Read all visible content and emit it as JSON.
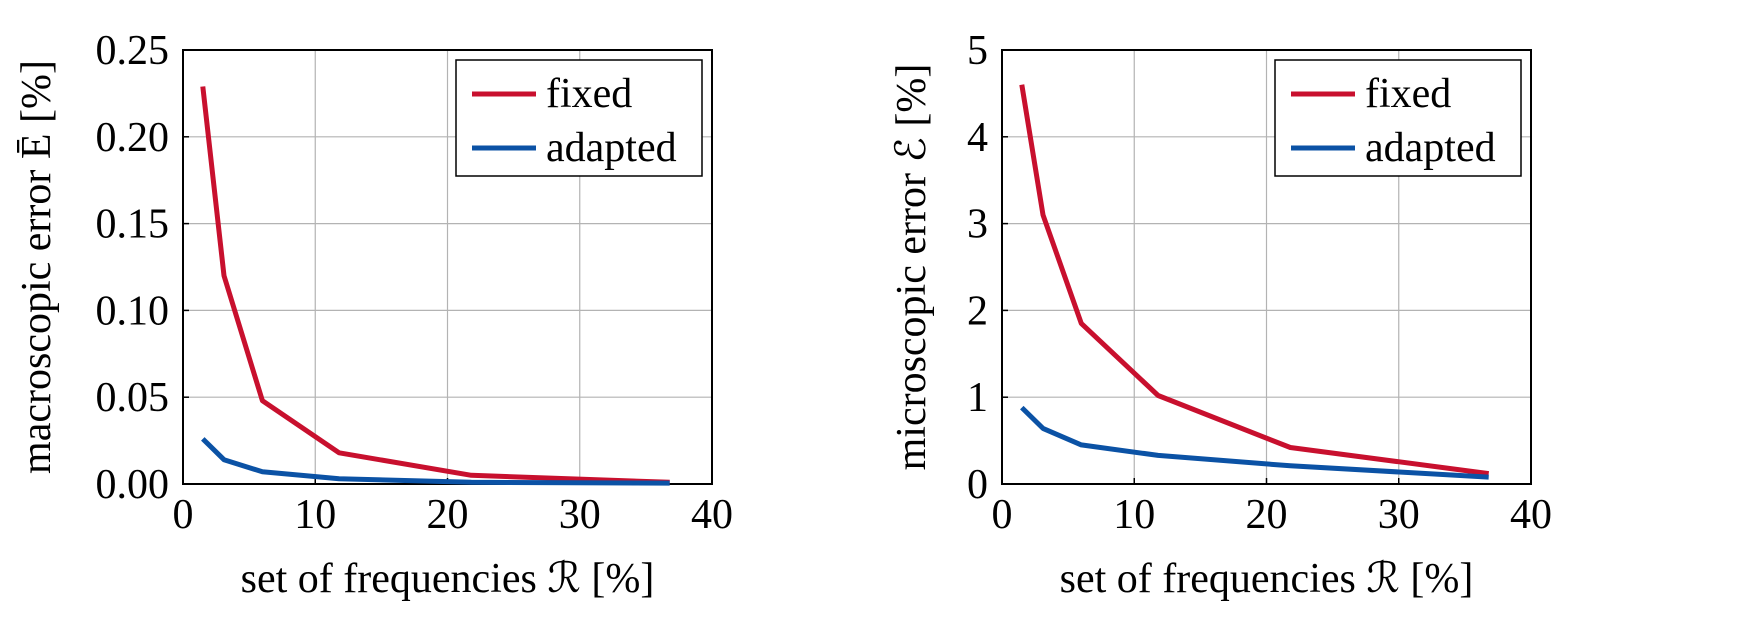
{
  "chart_data": [
    {
      "type": "line",
      "xlabel": "set of frequencies ℛ [%]",
      "ylabel": "macroscopic error Ē [%]",
      "xlim": [
        0,
        40
      ],
      "ylim": [
        0,
        0.25
      ],
      "xticks": [
        "0",
        "10",
        "20",
        "30",
        "40"
      ],
      "yticks": [
        "0.00",
        "0.05",
        "0.10",
        "0.15",
        "0.20",
        "0.25"
      ],
      "grid": true,
      "legend_position": "top-right",
      "series": [
        {
          "name": "fixed",
          "color": "#c8102e",
          "x": [
            1.5,
            3.1,
            6.0,
            11.8,
            21.8,
            36.8
          ],
          "y": [
            0.229,
            0.12,
            0.048,
            0.018,
            0.005,
            0.001
          ]
        },
        {
          "name": "adapted",
          "color": "#0b52a5",
          "x": [
            1.5,
            3.1,
            6.0,
            11.8,
            21.8,
            36.8
          ],
          "y": [
            0.026,
            0.014,
            0.007,
            0.003,
            0.001,
            0.0005
          ]
        }
      ]
    },
    {
      "type": "line",
      "xlabel": "set of frequencies ℛ [%]",
      "ylabel": "microscopic error ℰ [%]",
      "xlim": [
        0,
        40
      ],
      "ylim": [
        0,
        5
      ],
      "xticks": [
        "0",
        "10",
        "20",
        "30",
        "40"
      ],
      "yticks": [
        "0",
        "1",
        "2",
        "3",
        "4",
        "5"
      ],
      "grid": true,
      "legend_position": "top-right",
      "series": [
        {
          "name": "fixed",
          "color": "#c8102e",
          "x": [
            1.5,
            3.1,
            6.0,
            11.8,
            21.8,
            36.8
          ],
          "y": [
            4.6,
            3.1,
            1.85,
            1.02,
            0.42,
            0.12
          ]
        },
        {
          "name": "adapted",
          "color": "#0b52a5",
          "x": [
            1.5,
            3.1,
            6.0,
            11.8,
            21.8,
            36.8
          ],
          "y": [
            0.88,
            0.64,
            0.45,
            0.33,
            0.21,
            0.08
          ]
        }
      ]
    }
  ]
}
